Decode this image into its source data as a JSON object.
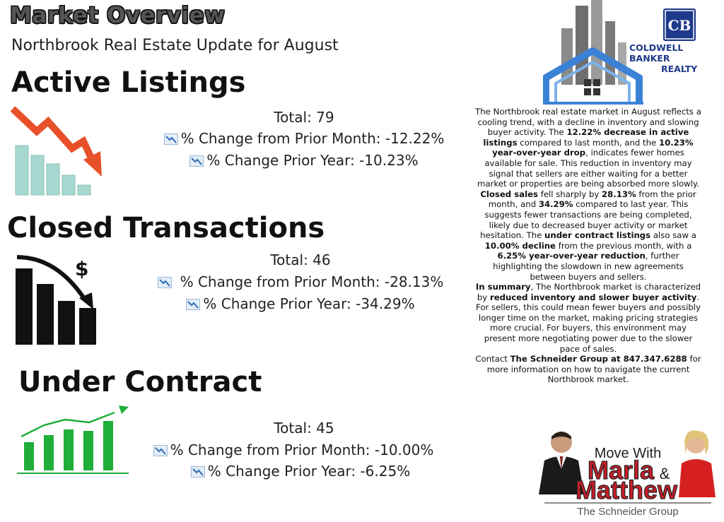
{
  "header": {
    "title": "Market Overview",
    "subtitle": "Northbrook Real Estate Update for August"
  },
  "brand": {
    "logo_letters": "CB",
    "name_line1": "COLDWELL BANKER",
    "name_line2": "REALTY",
    "navy": "#1f3a8a"
  },
  "sections": {
    "active": {
      "heading": "Active Listings",
      "total": "Total: 79",
      "month": "% Change from Prior Month: -12.22%",
      "year": "% Change Prior Year: -10.23%",
      "icon": "decline-bar-chart-icon"
    },
    "closed": {
      "heading": "Closed Transactions",
      "total": "Total: 46",
      "month": "% Change from Prior Month: -28.13%",
      "year": "% Change Prior Year: -34.29%",
      "icon": "falling-dollar-chart-icon"
    },
    "contract": {
      "heading": "Under Contract",
      "total": "Total: 45",
      "month": "% Change from Prior Month: -10.00%",
      "year": "% Change Prior Year: -6.25%",
      "icon": "rising-bar-chart-icon"
    }
  },
  "summary": {
    "p1a": "The Northbrook real estate market in August reflects a cooling trend, with a decline in inventory and slowing buyer activity. The ",
    "p1b": "12.22% decrease in active listings",
    "p1c": " compared to last month, and the ",
    "p1d": "10.23% year-over-year drop",
    "p1e": ", indicates fewer homes available for sale. This reduction in inventory may signal that sellers are either waiting for a better market or properties are being absorbed more slowly.",
    "p2a": "Closed sales",
    "p2b": " fell sharply by ",
    "p2c": "28.13%",
    "p2d": " from the prior month, and ",
    "p2e": "34.29%",
    "p2f": " compared to last year. This suggests fewer transactions are being completed, likely due to decreased buyer activity or market hesitation. The ",
    "p2g": "under contract listings",
    "p2h": " also saw a ",
    "p2i": "10.00% decline",
    "p2j": " from the previous month, with a ",
    "p2k": "6.25% year-over-year reduction",
    "p2l": ", further highlighting the slowdown in new agreements between buyers and sellers.",
    "p3a": "In summary",
    "p3b": ", The Northbrook market is characterized by ",
    "p3c": "reduced inventory and slower buyer activity",
    "p3d": ". For sellers, this could mean fewer buyers and possibly longer time on the market, making pricing strategies more crucial. For buyers, this environment may present more negotiating power due to the slower pace of sales.",
    "p4a": "Contact ",
    "p4b": "The Schneider Group at 847.347.6288",
    "p4c": " for more information on how to navigate the current Northbrook market."
  },
  "promo": {
    "line1": "Move With",
    "line2a": "Marla",
    "amp": "&",
    "line3": "Matthew",
    "group": "The Schneider Group"
  },
  "colors": {
    "arrow_red": "#e8502a",
    "teal": "#a7d8cf",
    "green": "#1fae3a",
    "house_blue": "#3b82d6"
  }
}
